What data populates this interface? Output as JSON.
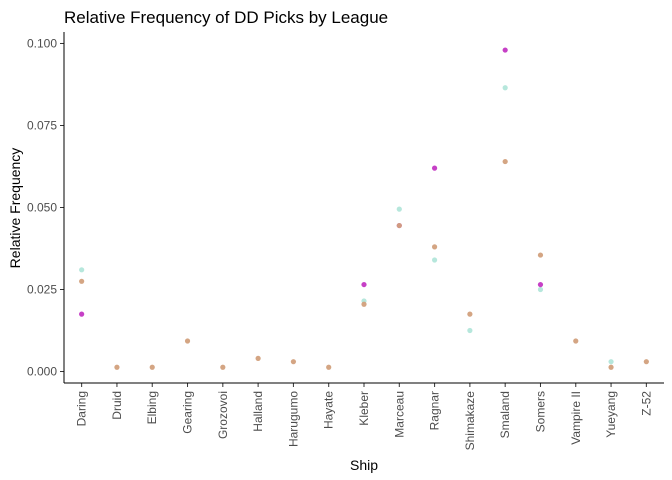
{
  "chart_data": {
    "type": "scatter",
    "title": "Relative Frequency of DD Picks by League",
    "xlabel": "Ship",
    "ylabel": "Relative Frequency",
    "categories": [
      "Daring",
      "Druid",
      "Elbing",
      "Gearing",
      "Grozovoi",
      "Halland",
      "Harugumo",
      "Hayate",
      "Kleber",
      "Marceau",
      "Ragnar",
      "Shimakaze",
      "Smaland",
      "Somers",
      "Vampire II",
      "Yueyang",
      "Z-52"
    ],
    "ylim": [
      -0.0035,
      0.1035
    ],
    "yticks": [
      0.0,
      0.025,
      0.05,
      0.075,
      0.1
    ],
    "ytick_labels": [
      "0.000",
      "0.025",
      "0.050",
      "0.075",
      "0.100"
    ],
    "grid": false,
    "legend": "none",
    "series": [
      {
        "color": "#b2e6da",
        "values": [
          0.031,
          null,
          null,
          null,
          null,
          null,
          null,
          null,
          0.0215,
          0.0495,
          0.034,
          0.0125,
          0.0865,
          0.025,
          null,
          0.003,
          null
        ]
      },
      {
        "color": "#b300b3",
        "values": [
          0.0175,
          null,
          null,
          null,
          null,
          null,
          null,
          null,
          0.0265,
          0.0445,
          0.062,
          null,
          0.098,
          0.0265,
          null,
          null,
          null
        ]
      },
      {
        "color": "#d2a07c",
        "values": [
          0.0275,
          0.0013,
          0.0013,
          0.0093,
          0.0013,
          0.004,
          0.003,
          0.0013,
          0.0205,
          0.0445,
          0.038,
          0.0175,
          0.064,
          0.0355,
          0.0093,
          0.0013,
          0.003
        ]
      }
    ]
  }
}
